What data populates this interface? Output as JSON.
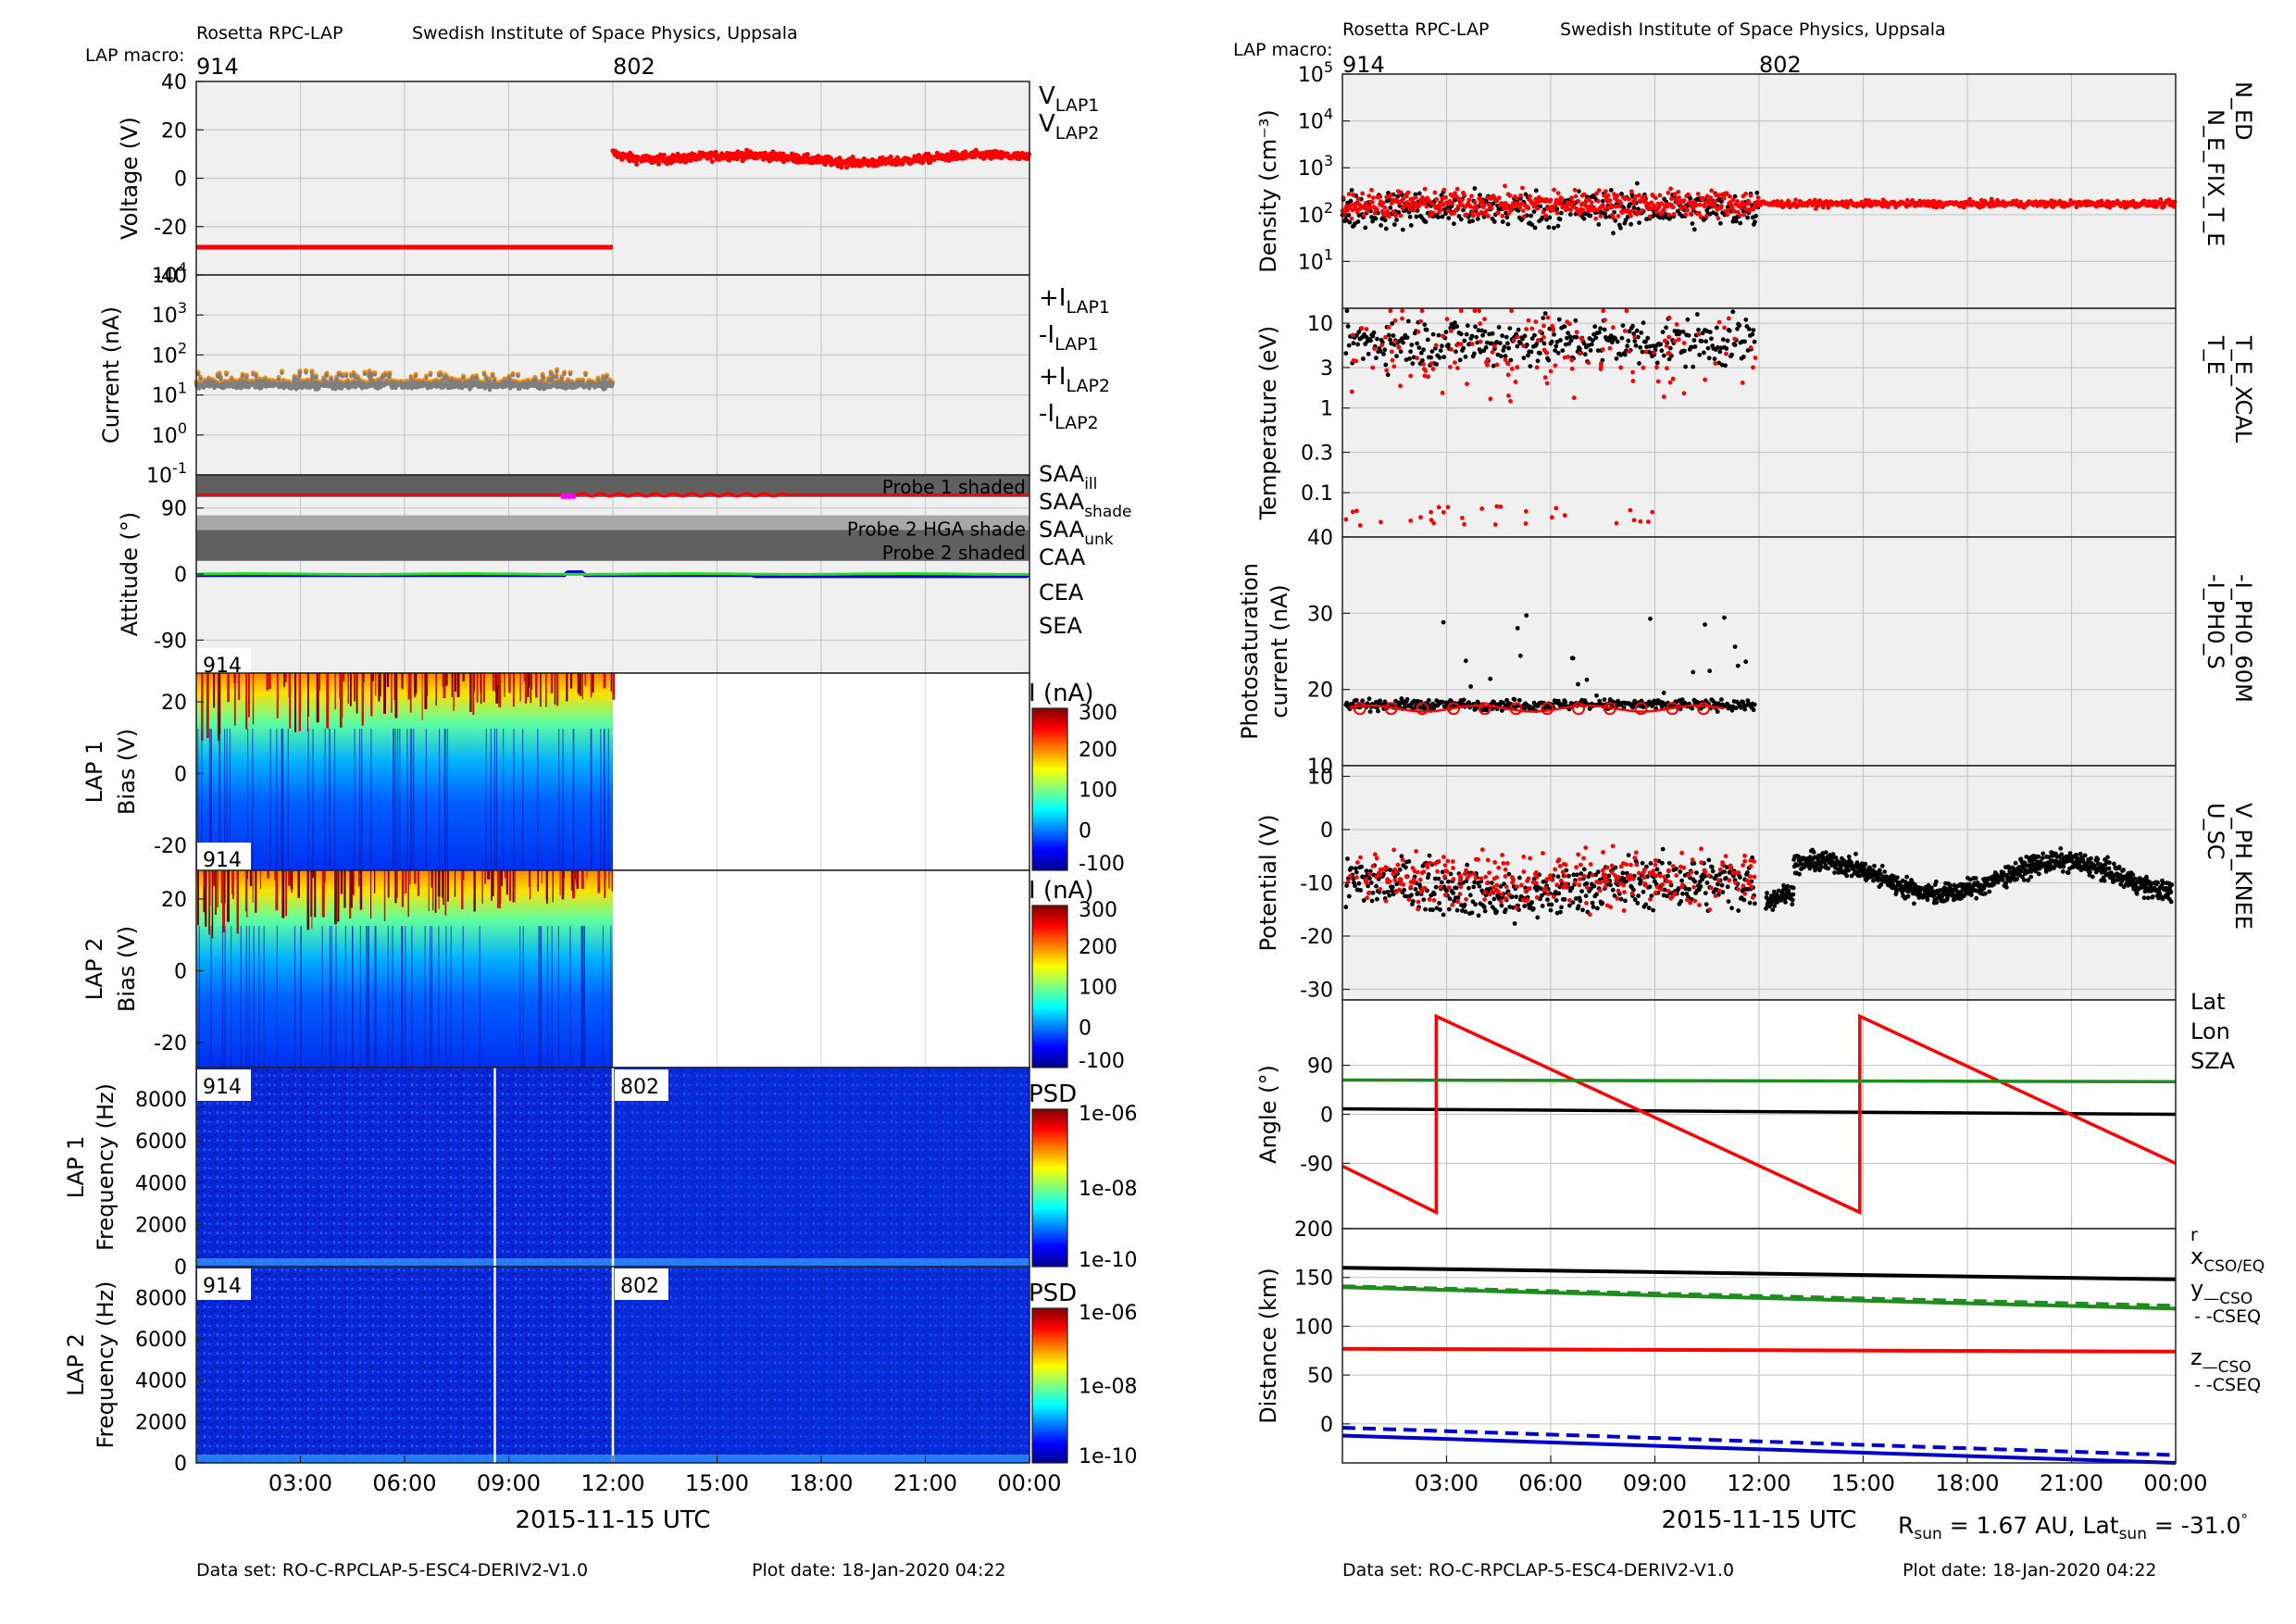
{
  "left": {
    "header_title": "Rosetta RPC-LAP",
    "header_institute": "Swedish Institute of Space Physics, Uppsala",
    "macro_label": "LAP macro:",
    "macros": [
      {
        "label": "914",
        "t": 0
      },
      {
        "label": "802",
        "t": 12
      }
    ],
    "xlabel": "2015-11-15 UTC",
    "footer_dataset": "Data set: RO-C-RPCLAP-5-ESC4-DERIV2-V1.0",
    "footer_date": "Plot date: 18-Jan-2020 04:22"
  },
  "right": {
    "header_title": "Rosetta RPC-LAP",
    "header_institute": "Swedish Institute of Space Physics, Uppsala",
    "macro_label": "LAP macro:",
    "macros": [
      {
        "label": "914",
        "t": 0
      },
      {
        "label": "802",
        "t": 12
      }
    ],
    "xlabel": "2015-11-15 UTC",
    "footer_dataset": "Data set: RO-C-RPCLAP-5-ESC4-DERIV2-V1.0",
    "footer_date": "Plot date: 18-Jan-2020 04:22",
    "rsun_text": "R_sun = 1.67 AU, Lat_sun = -31.0°"
  },
  "time_ticks": [
    "03:00",
    "06:00",
    "09:00",
    "12:00",
    "15:00",
    "18:00",
    "21:00",
    "00:00"
  ],
  "colors": {
    "red": "#ff0000",
    "gray": "#7f7f7f",
    "orange": "#ff8c00",
    "green": "#1e8c1e",
    "blue": "#0000cc",
    "lime": "#22dd22",
    "magenta": "#ff00ff",
    "panel_bg": "#f0f0f0",
    "shade_dark": "#606060",
    "shade_light": "#a8a8a8"
  },
  "chart_data": [
    {
      "type": "scatter",
      "ylabel": "Voltage (V)",
      "ylim": [
        -40,
        40
      ],
      "yticks": [
        "40",
        "20",
        "0",
        "-20",
        "-40"
      ],
      "legend": [
        {
          "text": "V",
          "sub": "LAP1",
          "color": "#000000"
        },
        {
          "text": "V",
          "sub": "LAP2",
          "color": "#ff0000"
        }
      ],
      "series": [
        {
          "name": "V_LAP2 (914)",
          "x": [
            0,
            12
          ],
          "y": [
            -28.5,
            -28.5
          ]
        },
        {
          "name": "V_LAP2 (802)",
          "x": [
            12,
            15,
            18,
            21,
            24
          ],
          "y": [
            12,
            7,
            9,
            8,
            10
          ]
        }
      ]
    },
    {
      "type": "scatter",
      "ylabel": "Current (nA)",
      "yscale": "log",
      "ylim": [
        0.1,
        10000
      ],
      "yticks": [
        {
          "b": "10",
          "e": "4"
        },
        {
          "b": "10",
          "e": "3"
        },
        {
          "b": "10",
          "e": "2"
        },
        {
          "b": "10",
          "e": "1"
        },
        {
          "b": "10",
          "e": "0"
        },
        {
          "b": "10",
          "e": "-1"
        }
      ],
      "legend": [
        {
          "text": "+I",
          "sub": "LAP1",
          "color": "#000000"
        },
        {
          "text": "-I",
          "sub": "LAP1",
          "color": "#7f7f7f"
        },
        {
          "text": "+I",
          "sub": "LAP2",
          "color": "#ff0000"
        },
        {
          "text": "-I",
          "sub": "LAP2",
          "color": "#ff8c00"
        }
      ],
      "series": [
        {
          "name": "-I_LAP2",
          "x": [
            0,
            12
          ],
          "y": [
            20,
            20
          ]
        }
      ]
    },
    {
      "type": "line",
      "ylabel": "Attitude (°)",
      "ylim": [
        -135,
        135
      ],
      "yticks": [
        "90",
        "0",
        "-90"
      ],
      "shade_labels": [
        "Probe 1 shaded",
        "Probe 2 HGA shade",
        "Probe 2 shaded"
      ],
      "legend": [
        {
          "text": "SAA",
          "sub": "ill",
          "color": "#ff0000"
        },
        {
          "text": "SAA",
          "sub": "shade",
          "color": "#e8a000"
        },
        {
          "text": "SAA",
          "sub": "unk",
          "color": "#ff00ff"
        },
        {
          "text": "CAA",
          "sub": "",
          "color": "#0000cc"
        },
        {
          "text": "CEA",
          "sub": "",
          "color": "#22dd22"
        },
        {
          "text": "SEA",
          "sub": "",
          "color": "#000000"
        }
      ],
      "series": [
        {
          "name": "SAA_ill",
          "x": [
            0,
            24
          ],
          "y": [
            108,
            108
          ]
        },
        {
          "name": "CEA",
          "x": [
            0,
            24
          ],
          "y": [
            0,
            0
          ]
        },
        {
          "name": "CAA",
          "x": [
            0,
            24
          ],
          "y": [
            -2,
            -2
          ]
        }
      ]
    },
    {
      "type": "heatmap",
      "ylabel": "LAP 1",
      "ylabel2": "Bias (V)",
      "ylim": [
        -27,
        28
      ],
      "yticks": [
        "20",
        "0",
        "-20"
      ],
      "tag": "914",
      "cb_title": "I (nA)",
      "cb_ticks": [
        "300",
        "200",
        "100",
        "0",
        "-100"
      ],
      "x_extent": [
        0,
        12
      ]
    },
    {
      "type": "heatmap",
      "ylabel": "LAP 2",
      "ylabel2": "Bias (V)",
      "ylim": [
        -27,
        28
      ],
      "yticks": [
        "20",
        "0",
        "-20"
      ],
      "tag": "914",
      "cb_title": "I (nA)",
      "cb_ticks": [
        "300",
        "200",
        "100",
        "0",
        "-100"
      ],
      "x_extent": [
        0,
        12
      ]
    },
    {
      "type": "heatmap",
      "ylabel": "LAP 1",
      "ylabel2": "Frequency (Hz)",
      "ylim": [
        0,
        9500
      ],
      "yticks": [
        "8000",
        "6000",
        "4000",
        "2000",
        "0"
      ],
      "tags": [
        "914",
        "802"
      ],
      "cb_title": "PSD",
      "cb_ticks": [
        "1e-06",
        "1e-08",
        "1e-10"
      ]
    },
    {
      "type": "heatmap",
      "ylabel": "LAP 2",
      "ylabel2": "Frequency (Hz)",
      "ylim": [
        0,
        9500
      ],
      "yticks": [
        "8000",
        "6000",
        "4000",
        "2000",
        "0"
      ],
      "tags": [
        "914",
        "802"
      ],
      "cb_title": "PSD",
      "cb_ticks": [
        "1e-06",
        "1e-08",
        "1e-10"
      ]
    },
    {
      "type": "scatter",
      "ylabel": "Density (cm⁻³)",
      "yscale": "log",
      "ylim": [
        1,
        100000
      ],
      "yticks": [
        {
          "b": "10",
          "e": "5"
        },
        {
          "b": "10",
          "e": "4"
        },
        {
          "b": "10",
          "e": "3"
        },
        {
          "b": "10",
          "e": "2"
        },
        {
          "b": "10",
          "e": "1"
        }
      ],
      "right_labels": [
        {
          "text": "N_ED",
          "color": "#ff0000"
        },
        {
          "text": "N_E_FIX_T_E",
          "color": "#000000"
        }
      ],
      "series": [
        {
          "name": "N_ED",
          "x": [
            0,
            12,
            24
          ],
          "y": [
            180,
            150,
            180
          ]
        },
        {
          "name": "N_E_FIX_T_E",
          "x": [
            0,
            12
          ],
          "y": [
            120,
            140
          ]
        }
      ]
    },
    {
      "type": "scatter",
      "ylabel": "Temperature (eV)",
      "yscale": "log",
      "ylim": [
        0.03,
        15
      ],
      "yticks": [
        "10",
        "3",
        "1",
        "0.3",
        "0.1"
      ],
      "right_labels": [
        {
          "text": "T_E_XCAL",
          "color": "#ff0000"
        },
        {
          "text": "T_E",
          "color": "#000000"
        }
      ],
      "series": [
        {
          "name": "T_E",
          "x": [
            0,
            12
          ],
          "y": [
            6,
            6
          ]
        }
      ]
    },
    {
      "type": "scatter",
      "ylabel": "Photosaturation",
      "ylabel2": "current (nA)",
      "ylim": [
        10,
        40
      ],
      "yticks": [
        "40",
        "30",
        "20",
        "10"
      ],
      "right_labels": [
        {
          "text": "-I_PH0_60M",
          "color": "#ff0000"
        },
        {
          "text": "-I_PH0_S",
          "color": "#000000"
        }
      ],
      "series": [
        {
          "name": "-I_PH0_S",
          "x": [
            0,
            12
          ],
          "y": [
            18,
            18
          ]
        },
        {
          "name": "-I_PH0_60M",
          "x": [
            0,
            11
          ],
          "y": [
            17.5,
            17.5
          ]
        }
      ]
    },
    {
      "type": "scatter",
      "ylabel": "Potential (V)",
      "ylim": [
        -32,
        12
      ],
      "yticks": [
        "10",
        "0",
        "-10",
        "-20",
        "-30"
      ],
      "right_labels": [
        {
          "text": "V_PH_KNEE",
          "color": "#ff0000"
        },
        {
          "text": "U_SC",
          "color": "#000000"
        }
      ],
      "series": [
        {
          "name": "U_SC",
          "x": [
            0,
            6,
            12,
            14,
            24
          ],
          "y": [
            -10,
            -14,
            -10,
            -7,
            -10
          ]
        }
      ]
    },
    {
      "type": "line",
      "ylabel": "Angle (°)",
      "ylim": [
        -210,
        210
      ],
      "yticks": [
        "90",
        "0",
        "-90"
      ],
      "legend": [
        {
          "text": "Lat",
          "color": "#000000"
        },
        {
          "text": "Lon",
          "color": "#ff0000"
        },
        {
          "text": "SZA",
          "color": "#1e8c1e"
        }
      ],
      "series": [
        {
          "name": "Lat",
          "x": [
            0,
            24
          ],
          "y": [
            10,
            0
          ]
        },
        {
          "name": "Lon",
          "x": [
            0,
            2.7,
            2.7,
            14.9,
            14.9,
            24
          ],
          "y": [
            -95,
            -180,
            180,
            -180,
            180,
            -90
          ]
        },
        {
          "name": "SZA",
          "x": [
            0,
            24
          ],
          "y": [
            63,
            60
          ]
        }
      ]
    },
    {
      "type": "line",
      "ylabel": "Distance (km)",
      "ylim": [
        -40,
        200
      ],
      "yticks": [
        "200",
        "150",
        "100",
        "50",
        "0"
      ],
      "legend": [
        {
          "text": "r",
          "sub": "",
          "color": "#000000"
        },
        {
          "text": "x",
          "sub": "CSO/EQ",
          "color": "#ff0000"
        },
        {
          "text": "y",
          "sub": "—CSO",
          "color": "#1e8c1e"
        },
        {
          "text": "- -CSEQ",
          "sub": "",
          "color": "#1e8c1e"
        },
        {
          "text": "z",
          "sub": "—CSO",
          "color": "#0000cc"
        },
        {
          "text": "- -CSEQ",
          "sub": "",
          "color": "#0000cc"
        }
      ],
      "series": [
        {
          "name": "r",
          "x": [
            0,
            24
          ],
          "y": [
            160,
            148
          ]
        },
        {
          "name": "x",
          "x": [
            0,
            24
          ],
          "y": [
            77,
            74
          ]
        },
        {
          "name": "y_CSO",
          "x": [
            0,
            24
          ],
          "y": [
            140,
            118
          ]
        },
        {
          "name": "y_CSEQ",
          "x": [
            0,
            24
          ],
          "y": [
            141,
            121
          ]
        },
        {
          "name": "z_CSO",
          "x": [
            0,
            24
          ],
          "y": [
            -12,
            -40
          ]
        },
        {
          "name": "z_CSEQ",
          "x": [
            0,
            24
          ],
          "y": [
            -4,
            -32
          ]
        }
      ]
    }
  ]
}
